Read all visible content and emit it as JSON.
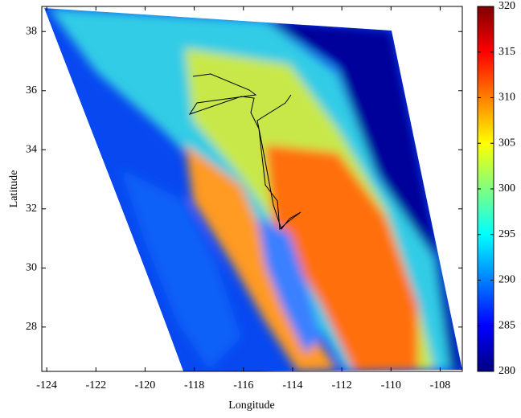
{
  "map": {
    "xlabel": "Longitude",
    "ylabel": "Latitude",
    "xlim": [
      -124.2,
      -107.1
    ],
    "ylim": [
      26.5,
      38.85
    ],
    "xticks": [
      -124,
      -122,
      -120,
      -118,
      -116,
      -114,
      -112,
      -110,
      -108
    ],
    "yticks": [
      28,
      30,
      32,
      34,
      36,
      38
    ],
    "colorbar": {
      "clim": [
        280,
        320
      ],
      "ticks": [
        280,
        285,
        290,
        295,
        300,
        305,
        310,
        315,
        320
      ],
      "colormap": "jet"
    }
  }
}
